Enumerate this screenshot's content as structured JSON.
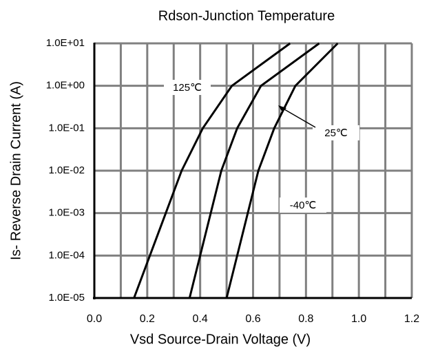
{
  "chart_data": {
    "type": "line",
    "title": "Rdson-Junction Temperature",
    "xlabel": "Vsd Source-Drain Voltage (V)",
    "ylabel": "Is- Reverse Drain Current (A)",
    "log_y": true,
    "grid": true,
    "xlim": [
      0,
      1.2
    ],
    "xticks": [
      {
        "value": 0,
        "label": "0.0"
      },
      0.2,
      0.4,
      0.6,
      0.8,
      {
        "value": 1,
        "label": "1.0"
      },
      1.2
    ],
    "xminorticks": [
      0.1,
      0.3,
      0.5,
      0.7,
      0.9,
      1.1
    ],
    "ylim": [
      1e-05,
      10
    ],
    "yticks": [
      {
        "value": 10,
        "label": "1.0E+01"
      },
      {
        "value": 1,
        "label": "1.0E+00"
      },
      {
        "value": 0.1,
        "label": "1.0E-01"
      },
      {
        "value": 0.01,
        "label": "1.0E-02"
      },
      {
        "value": 0.001,
        "label": "1.0E-03"
      },
      {
        "value": 0.0001,
        "label": "1.0E-04"
      },
      {
        "value": 1e-05,
        "label": "1.0E-05"
      }
    ],
    "series": [
      {
        "name": "125℃",
        "color": "#000000",
        "x": [
          0.15,
          0.21,
          0.27,
          0.33,
          0.41,
          0.52,
          0.74
        ],
        "values": [
          1e-05,
          0.0001,
          0.001,
          0.01,
          0.1,
          1,
          10
        ]
      },
      {
        "name": "25℃",
        "color": "#000000",
        "x": [
          0.36,
          0.4,
          0.44,
          0.48,
          0.54,
          0.63,
          0.85
        ],
        "values": [
          1e-05,
          0.0001,
          0.001,
          0.01,
          0.1,
          1,
          10
        ]
      },
      {
        "name": "-40℃",
        "color": "#000000",
        "x": [
          0.5,
          0.54,
          0.58,
          0.62,
          0.68,
          0.76,
          0.92
        ],
        "values": [
          1e-05,
          0.0001,
          0.001,
          0.01,
          0.1,
          1,
          10
        ]
      }
    ]
  }
}
